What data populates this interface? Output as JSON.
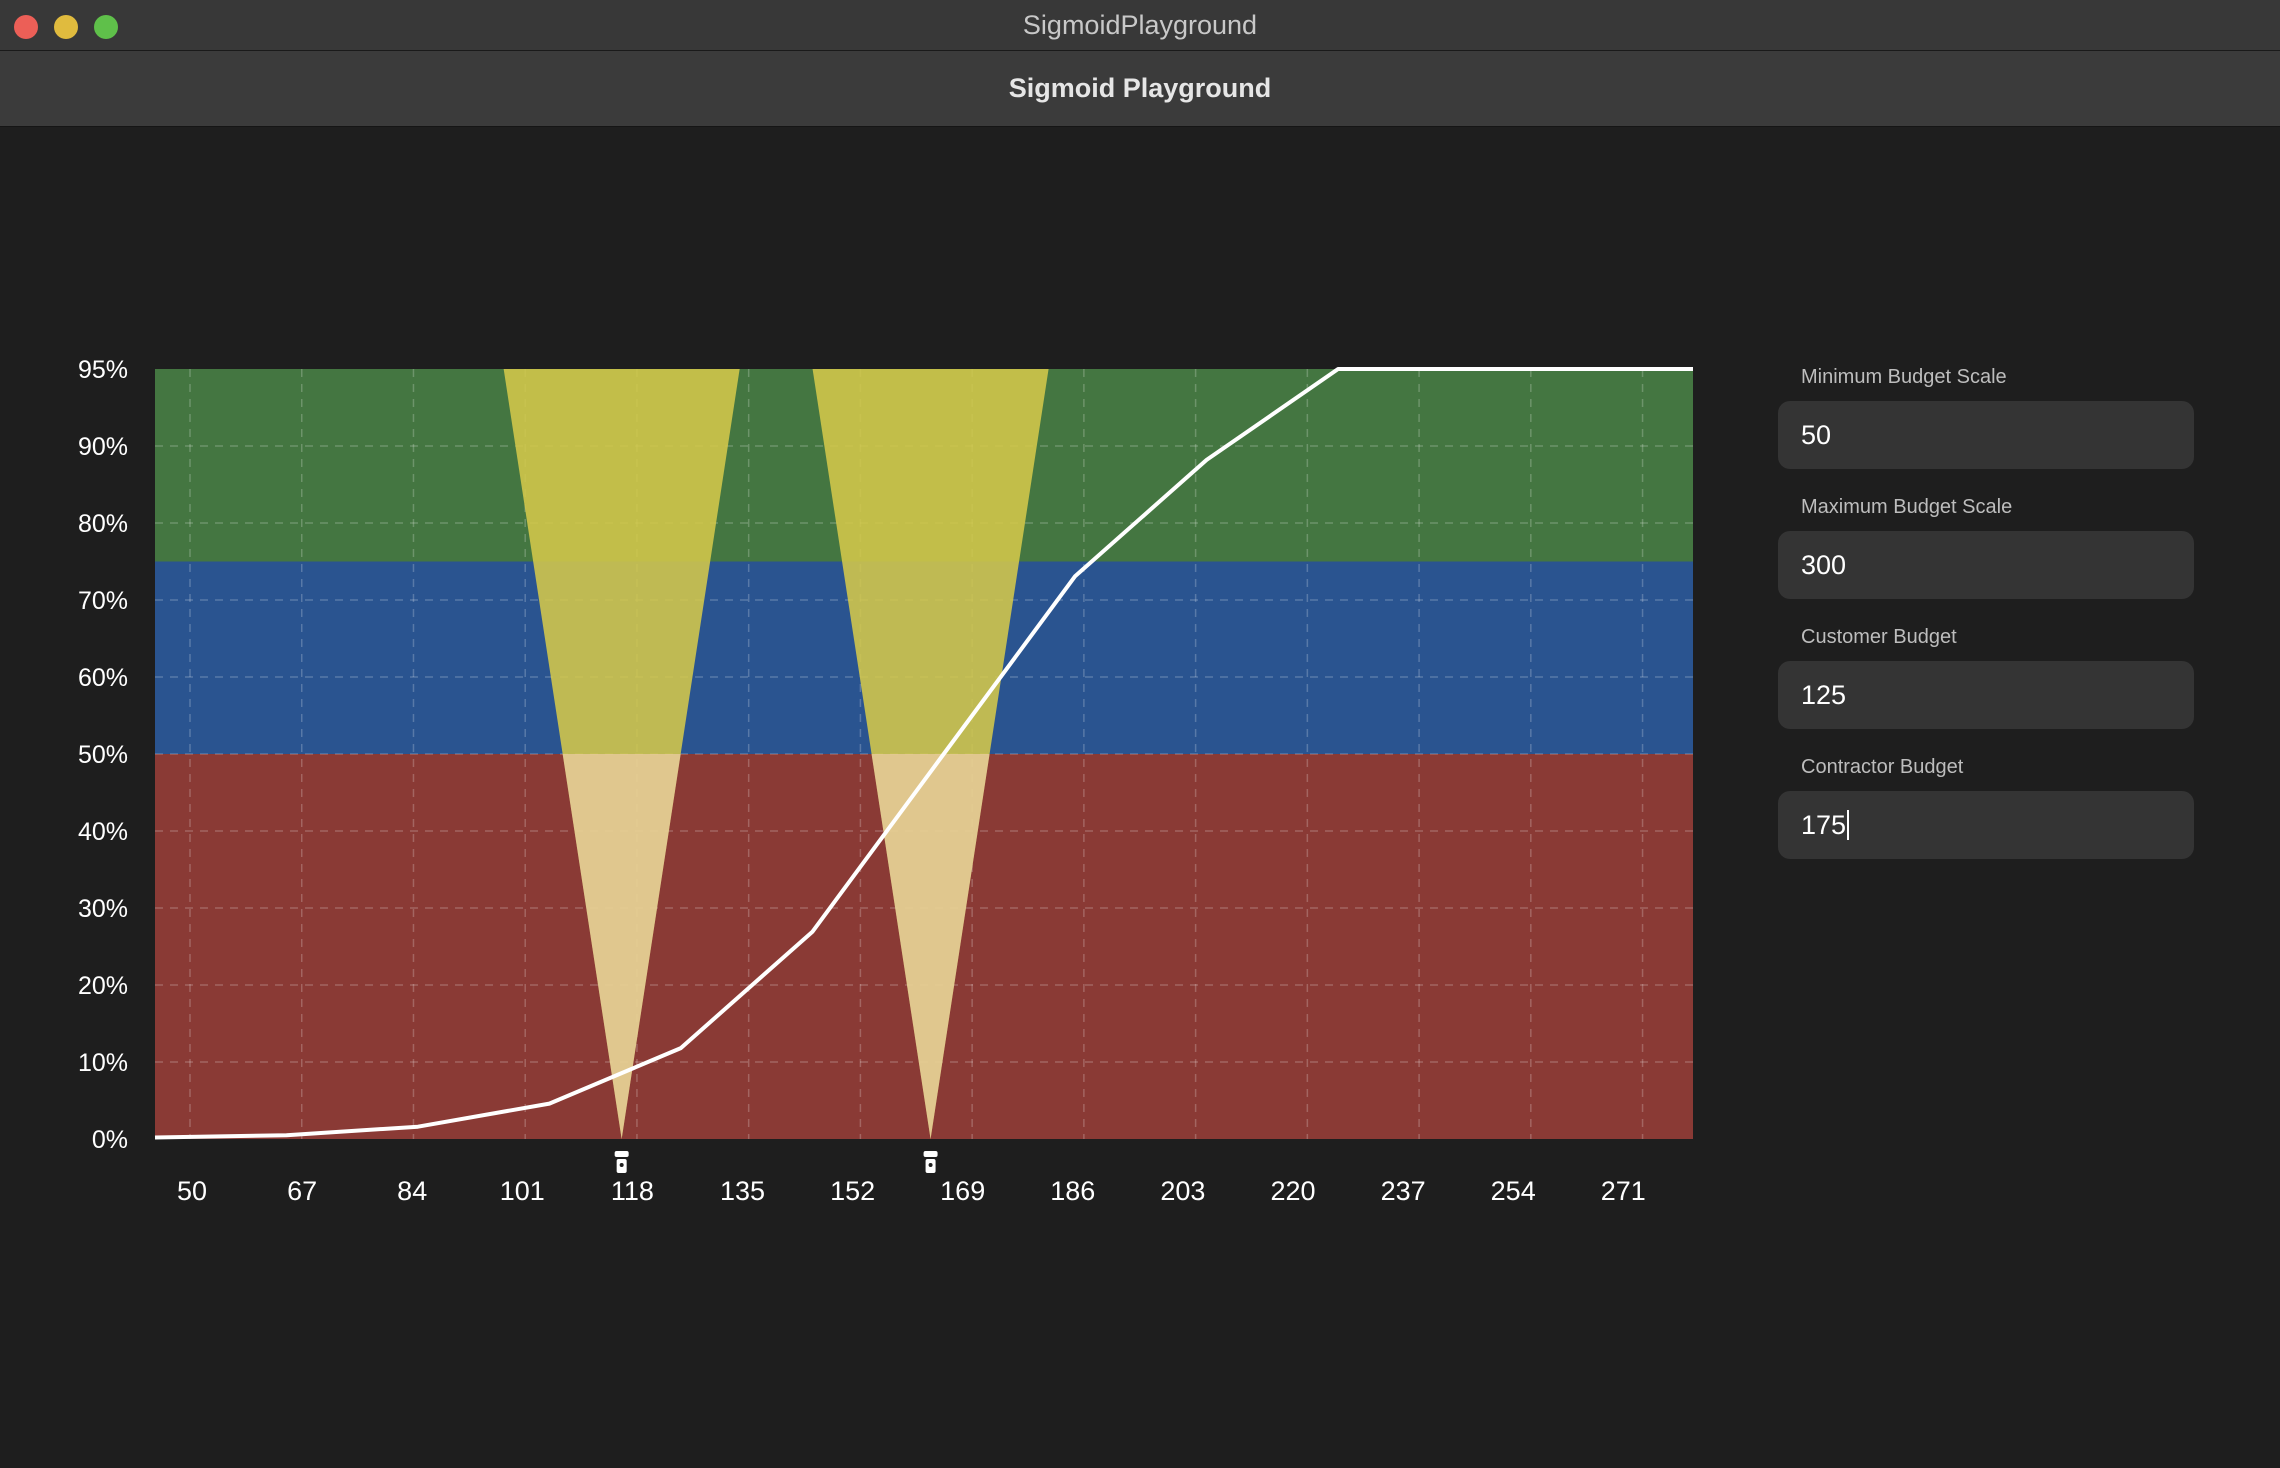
{
  "window": {
    "title": "SigmoidPlayground"
  },
  "toolbar": {
    "heading": "Sigmoid Playground"
  },
  "chart_data": {
    "type": "line",
    "y_ticks": [
      "0%",
      "10%",
      "20%",
      "30%",
      "40%",
      "50%",
      "60%",
      "70%",
      "80%",
      "90%",
      "95%"
    ],
    "y_tick_values": [
      0,
      10,
      20,
      30,
      40,
      50,
      60,
      70,
      80,
      90,
      95
    ],
    "x_ticks": [
      "50",
      "67",
      "84",
      "101",
      "118",
      "135",
      "152",
      "169",
      "186",
      "203",
      "220",
      "237",
      "254",
      "271"
    ],
    "x_tick_values": [
      50,
      67,
      84,
      101,
      118,
      135,
      152,
      169,
      186,
      203,
      220,
      237,
      254,
      271
    ],
    "xlim": [
      50,
      284
    ],
    "grid": true,
    "bands": [
      {
        "from": 0,
        "to": 50,
        "color": "#8a3a35"
      },
      {
        "from": 50,
        "to": 75,
        "color": "#2a5490"
      },
      {
        "from": 75,
        "to": 100,
        "color": "#447641"
      }
    ],
    "series": [
      {
        "color": "#ffffff",
        "x": [
          50,
          70,
          90,
          110,
          130,
          150,
          170,
          190,
          210,
          230,
          250,
          270,
          284
        ],
        "y": [
          0.2,
          0.5,
          1.6,
          4.6,
          11.8,
          26.9,
          50,
          73.1,
          88.2,
          95.4,
          98.4,
          99.5,
          99.8
        ]
      }
    ],
    "markers": [
      {
        "name": "customer-budget",
        "x": 121,
        "color": "#d4c84a"
      },
      {
        "name": "contractor-budget",
        "x": 168,
        "color": "#d4c84a"
      }
    ]
  },
  "form": {
    "fields": [
      {
        "label": "Minimum Budget Scale",
        "value": "50"
      },
      {
        "label": "Maximum Budget Scale",
        "value": "300"
      },
      {
        "label": "Customer Budget",
        "value": "125"
      },
      {
        "label": "Contractor Budget",
        "value": "175"
      }
    ]
  }
}
